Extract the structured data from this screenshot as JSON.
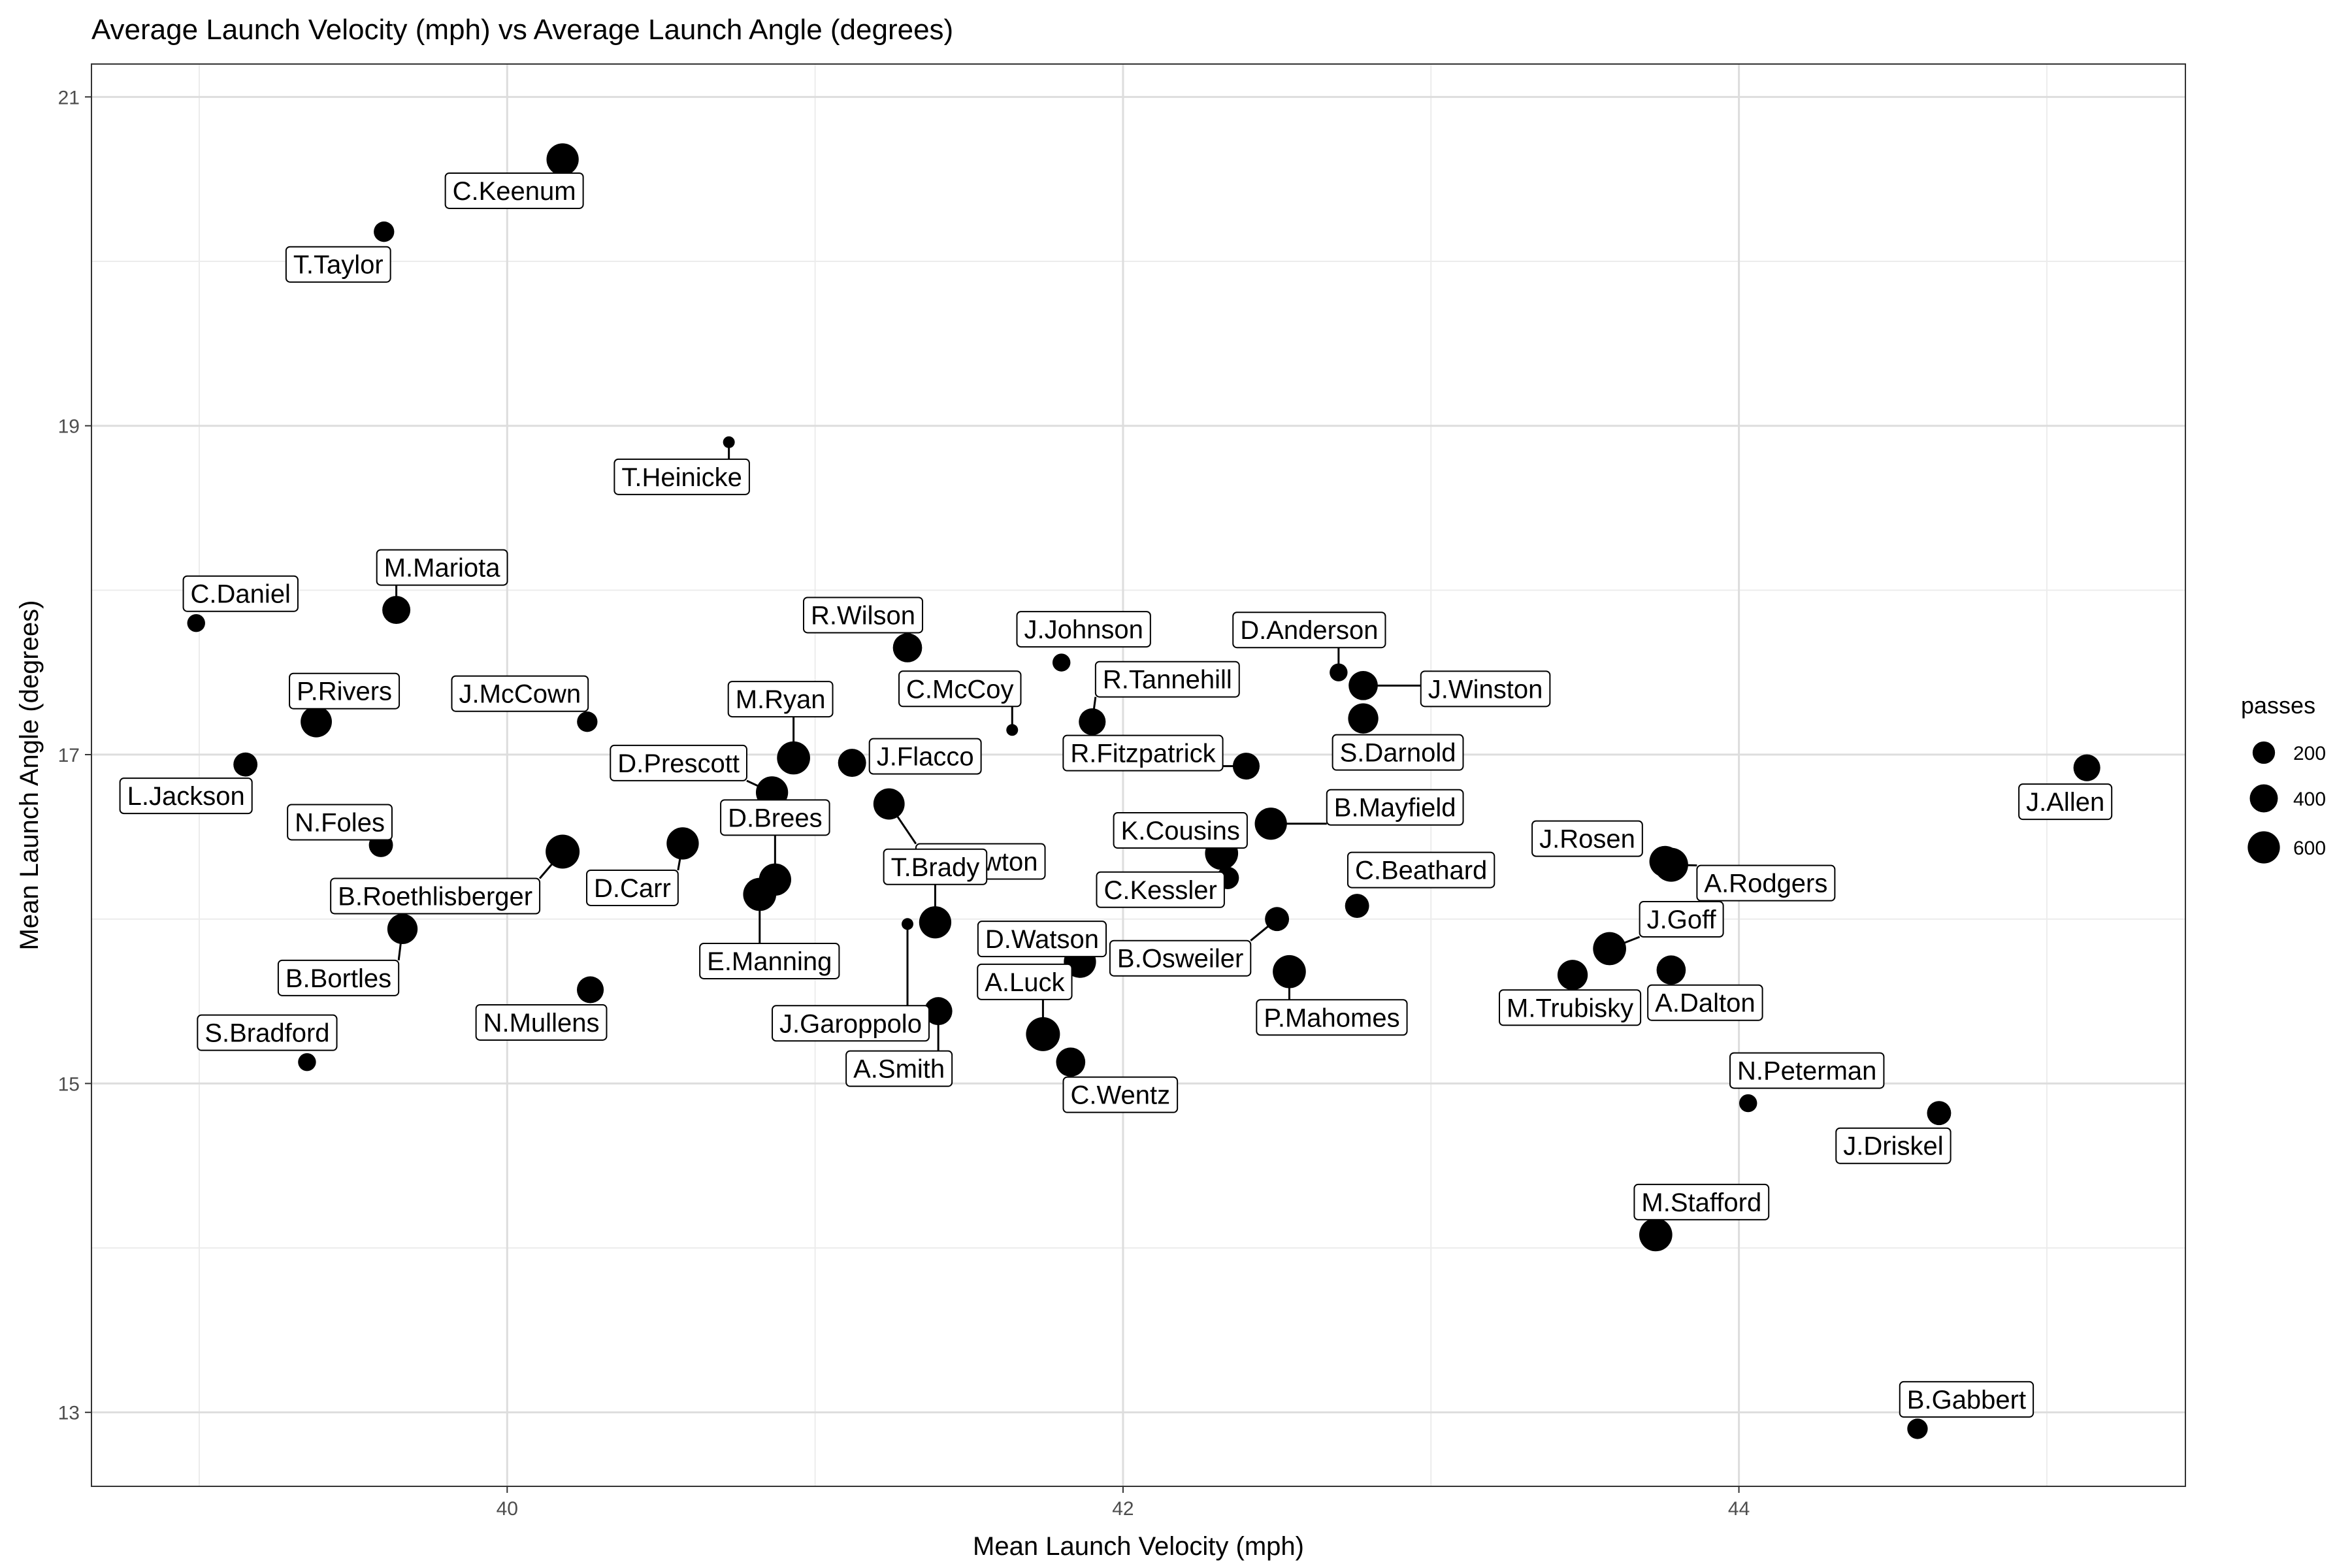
{
  "chart_data": {
    "type": "scatter",
    "title": "Average Launch Velocity (mph) vs Average Launch Angle (degrees)",
    "xlabel": "Mean Launch Velocity (mph)",
    "ylabel": "Mean Launch Angle (degrees)",
    "xlim": [
      38.65,
      45.45
    ],
    "ylim": [
      12.55,
      21.2
    ],
    "x_ticks": [
      40,
      42,
      44
    ],
    "y_ticks": [
      13,
      15,
      17,
      19,
      21
    ],
    "grid": true,
    "size_legend": {
      "title": "passes",
      "values": [
        200,
        400,
        600
      ],
      "placement": "right"
    },
    "points": [
      {
        "name": "C.Keenum",
        "x": 40.18,
        "y": 20.62,
        "passes": 600
      },
      {
        "name": "T.Taylor",
        "x": 39.6,
        "y": 20.18,
        "passes": 150
      },
      {
        "name": "T.Heinicke",
        "x": 40.72,
        "y": 18.9,
        "passes": 50
      },
      {
        "name": "C.Daniel",
        "x": 38.99,
        "y": 17.8,
        "passes": 100
      },
      {
        "name": "M.Mariota",
        "x": 39.64,
        "y": 17.88,
        "passes": 400
      },
      {
        "name": "P.Rivers",
        "x": 39.38,
        "y": 17.2,
        "passes": 550
      },
      {
        "name": "J.McCown",
        "x": 40.26,
        "y": 17.2,
        "passes": 150
      },
      {
        "name": "L.Jackson",
        "x": 39.15,
        "y": 16.94,
        "passes": 250
      },
      {
        "name": "R.Wilson",
        "x": 41.3,
        "y": 17.65,
        "passes": 450
      },
      {
        "name": "J.Johnson",
        "x": 41.8,
        "y": 17.56,
        "passes": 100
      },
      {
        "name": "C.McCoy",
        "x": 41.64,
        "y": 17.15,
        "passes": 50
      },
      {
        "name": "D.Anderson",
        "x": 42.7,
        "y": 17.5,
        "passes": 100
      },
      {
        "name": "J.Winston",
        "x": 42.78,
        "y": 17.42,
        "passes": 450
      },
      {
        "name": "S.Darnold",
        "x": 42.78,
        "y": 17.22,
        "passes": 500
      },
      {
        "name": "R.Tannehill",
        "x": 41.9,
        "y": 17.2,
        "passes": 350
      },
      {
        "name": "R.Fitzpatrick",
        "x": 42.4,
        "y": 16.93,
        "passes": 350
      },
      {
        "name": "M.Ryan",
        "x": 40.93,
        "y": 16.98,
        "passes": 650
      },
      {
        "name": "J.Flacco",
        "x": 41.12,
        "y": 16.95,
        "passes": 400
      },
      {
        "name": "D.Prescott",
        "x": 40.86,
        "y": 16.77,
        "passes": 600
      },
      {
        "name": "C.Newton",
        "x": 41.24,
        "y": 16.7,
        "passes": 550
      },
      {
        "name": "K.Cousins",
        "x": 42.32,
        "y": 16.4,
        "passes": 650
      },
      {
        "name": "B.Mayfield",
        "x": 42.48,
        "y": 16.58,
        "passes": 600
      },
      {
        "name": "C.Kessler",
        "x": 42.34,
        "y": 16.25,
        "passes": 200
      },
      {
        "name": "D.Brees",
        "x": 40.87,
        "y": 16.24,
        "passes": 600
      },
      {
        "name": "D.Carr",
        "x": 40.57,
        "y": 16.46,
        "passes": 600
      },
      {
        "name": "B.Roethlisberger",
        "x": 40.18,
        "y": 16.41,
        "passes": 700
      },
      {
        "name": "N.Foles",
        "x": 39.59,
        "y": 16.45,
        "passes": 250
      },
      {
        "name": "E.Manning",
        "x": 40.82,
        "y": 16.15,
        "passes": 650
      },
      {
        "name": "J.Rosen",
        "x": 43.76,
        "y": 16.35,
        "passes": 550
      },
      {
        "name": "A.Rodgers",
        "x": 43.78,
        "y": 16.33,
        "passes": 700
      },
      {
        "name": "C.Beathard",
        "x": 42.76,
        "y": 16.08,
        "passes": 250
      },
      {
        "name": "B.Osweiler",
        "x": 42.5,
        "y": 16.0,
        "passes": 250
      },
      {
        "name": "T.Brady",
        "x": 41.39,
        "y": 15.98,
        "passes": 600
      },
      {
        "name": "J.Garoppolo",
        "x": 41.3,
        "y": 15.97,
        "passes": 50
      },
      {
        "name": "D.Watson",
        "x": 41.86,
        "y": 15.74,
        "passes": 600
      },
      {
        "name": "P.Mahomes",
        "x": 42.54,
        "y": 15.68,
        "passes": 650
      },
      {
        "name": "B.Bortles",
        "x": 39.66,
        "y": 15.94,
        "passes": 500
      },
      {
        "name": "J.Goff",
        "x": 43.58,
        "y": 15.82,
        "passes": 650
      },
      {
        "name": "M.Trubisky",
        "x": 43.46,
        "y": 15.66,
        "passes": 500
      },
      {
        "name": "A.Dalton",
        "x": 43.78,
        "y": 15.69,
        "passes": 450
      },
      {
        "name": "N.Mullens",
        "x": 40.27,
        "y": 15.57,
        "passes": 350
      },
      {
        "name": "A.Smith",
        "x": 41.4,
        "y": 15.44,
        "passes": 400
      },
      {
        "name": "A.Luck",
        "x": 41.74,
        "y": 15.3,
        "passes": 700
      },
      {
        "name": "C.Wentz",
        "x": 41.83,
        "y": 15.13,
        "passes": 450
      },
      {
        "name": "S.Bradford",
        "x": 39.35,
        "y": 15.13,
        "passes": 100
      },
      {
        "name": "N.Peterman",
        "x": 44.03,
        "y": 14.88,
        "passes": 100
      },
      {
        "name": "J.Driskel",
        "x": 44.65,
        "y": 14.82,
        "passes": 250
      },
      {
        "name": "M.Stafford",
        "x": 43.73,
        "y": 14.08,
        "passes": 650
      },
      {
        "name": "J.Allen",
        "x": 45.13,
        "y": 16.92,
        "passes": 350
      },
      {
        "name": "B.Gabbert",
        "x": 44.58,
        "y": 12.9,
        "passes": 150
      }
    ]
  }
}
